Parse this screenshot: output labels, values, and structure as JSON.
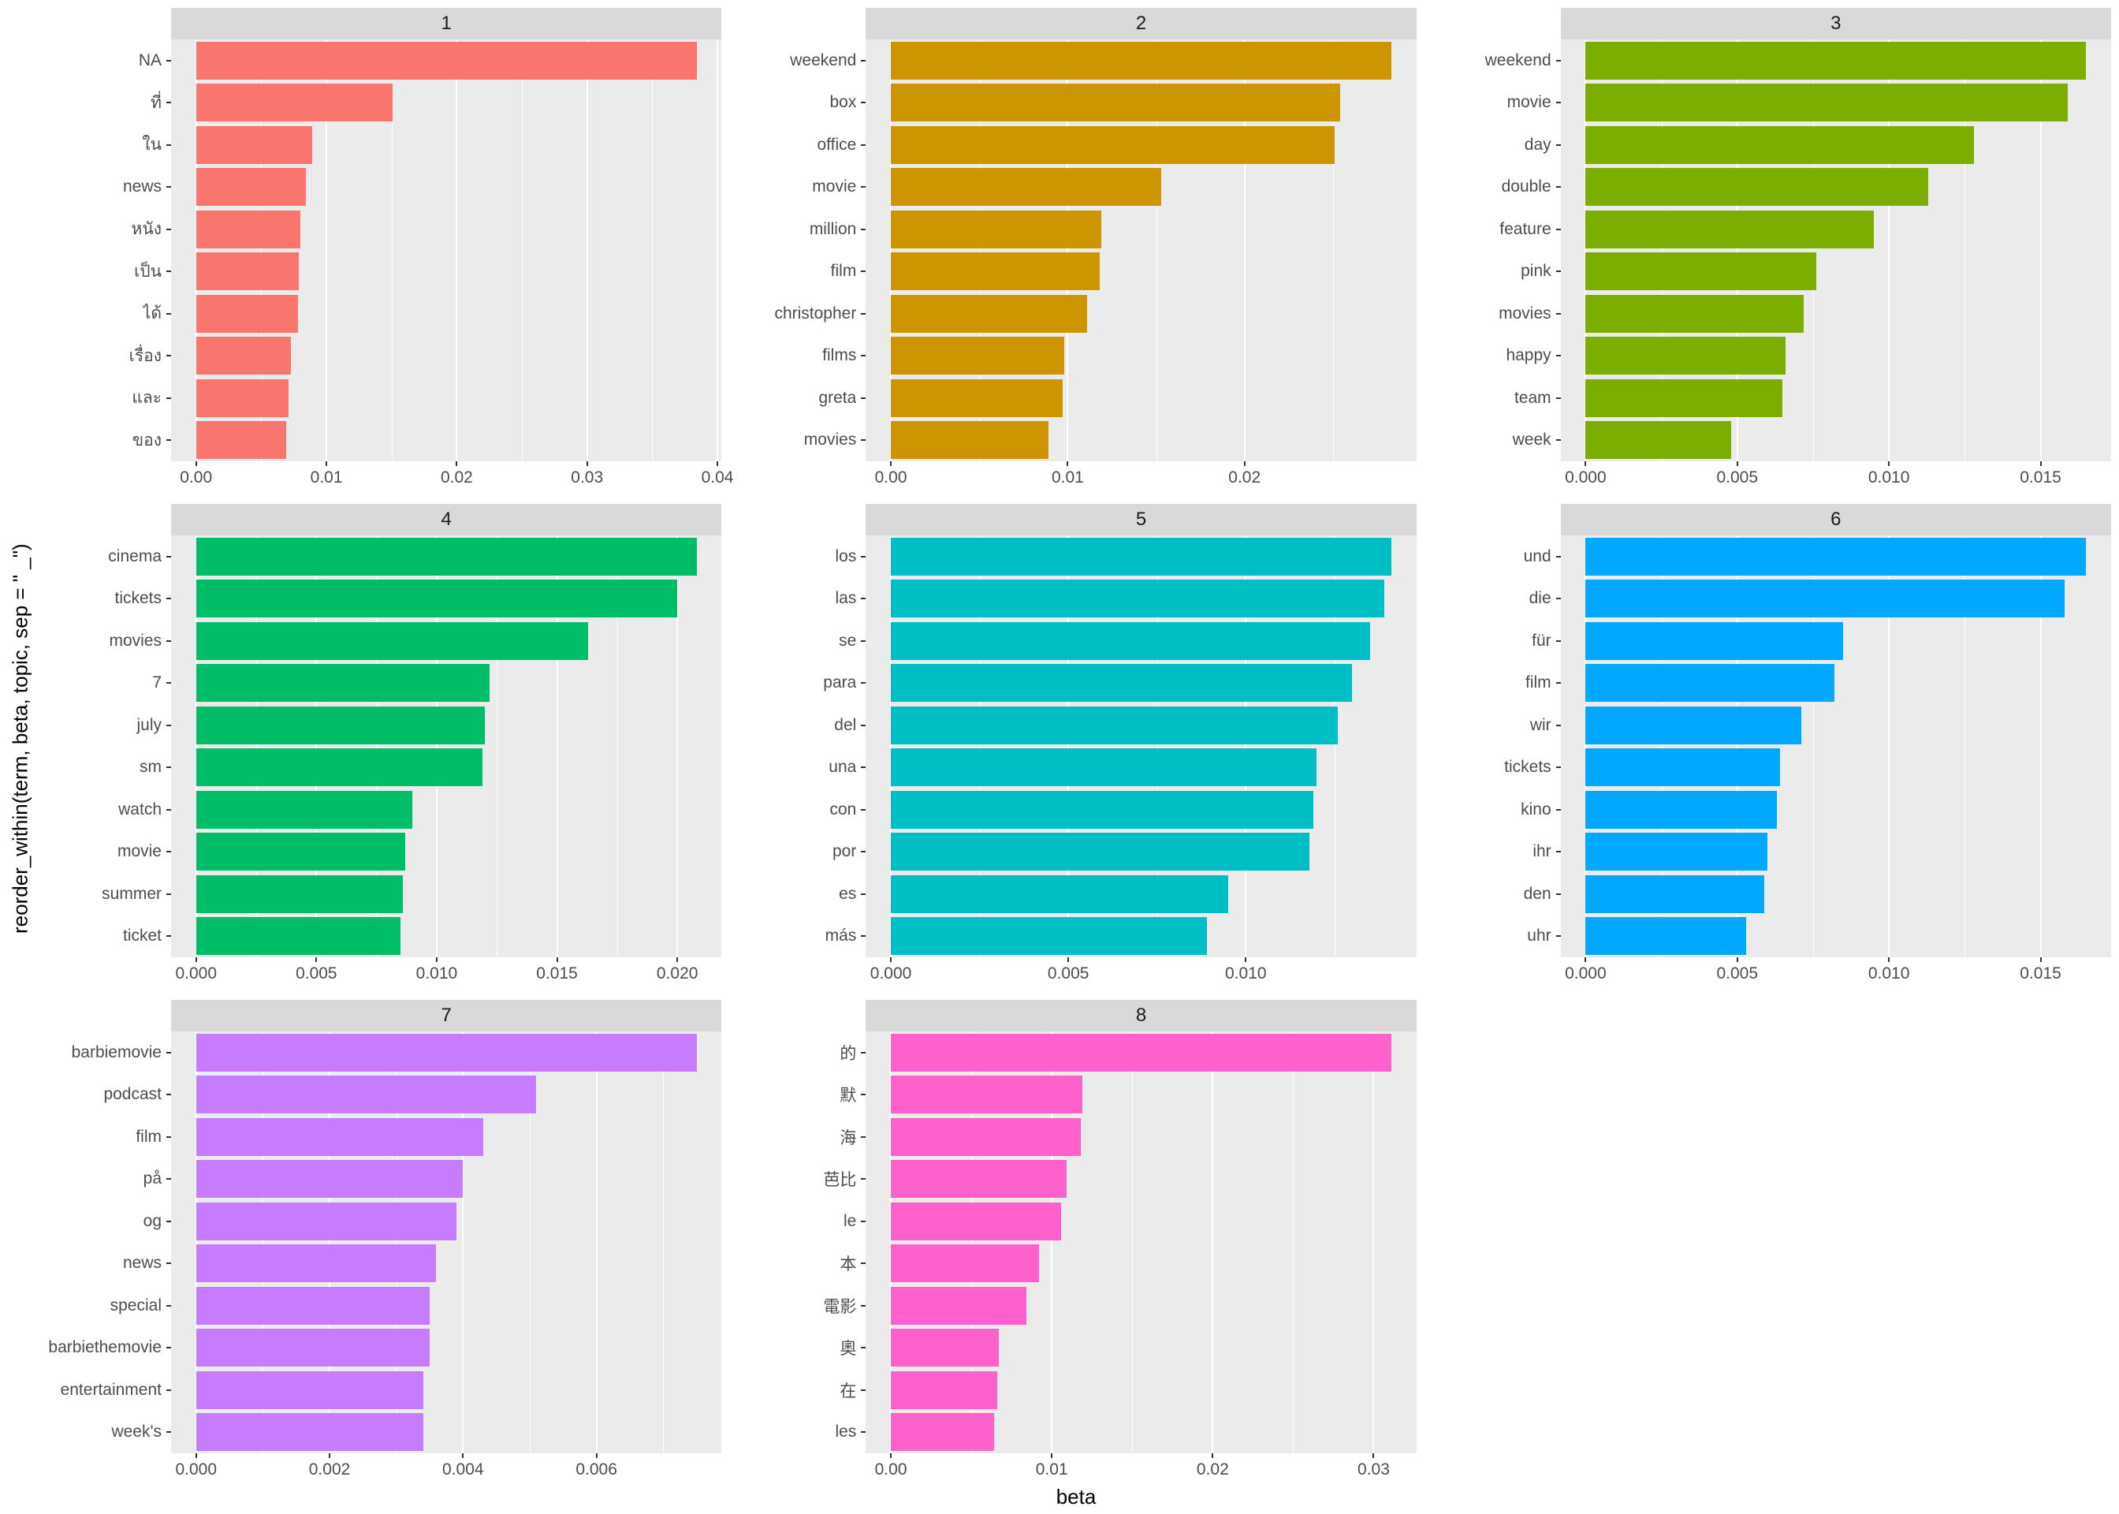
{
  "figure": {
    "xlab": "beta",
    "ylab": "reorder_within(term, beta, topic, sep = \" _\")"
  },
  "theme": {
    "strip_bg": "#d9d9d9",
    "panel_bg": "#ebebeb",
    "gridline": "#ffffff",
    "axis_text": "#4d4d4d"
  },
  "chart_data": {
    "type": "bar",
    "orientation": "horizontal",
    "facet_by": "topic",
    "xlabel": "beta",
    "ylabel": "reorder_within(term, beta, topic, sep = \" _\")",
    "panels": [
      {
        "topic": "1",
        "color": "#F8766D",
        "terms": [
          "NA",
          "ที่",
          "ใน",
          "news",
          "หนัง",
          "เป็น",
          "ได้",
          "เรื่อง",
          "และ",
          "ของ"
        ],
        "values": [
          0.0384,
          0.0151,
          0.0089,
          0.0084,
          0.008,
          0.0079,
          0.0078,
          0.0073,
          0.0071,
          0.0069
        ],
        "ticks": [
          0,
          0.01,
          0.02,
          0.03,
          0.04
        ],
        "tick_labels": [
          "0.00",
          "0.01",
          "0.02",
          "0.03",
          "0.04"
        ]
      },
      {
        "topic": "2",
        "color": "#CD9600",
        "terms": [
          "weekend",
          "box",
          "office",
          "movie",
          "million",
          "film",
          "christopher",
          "films",
          "greta",
          "movies"
        ],
        "values": [
          0.0283,
          0.0254,
          0.0251,
          0.0153,
          0.0119,
          0.0118,
          0.0111,
          0.0098,
          0.0097,
          0.0089
        ],
        "ticks": [
          0,
          0.01,
          0.02
        ],
        "tick_labels": [
          "0.00",
          "0.01",
          "0.02"
        ]
      },
      {
        "topic": "3",
        "color": "#7CAE00",
        "terms": [
          "weekend",
          "movie",
          "day",
          "double",
          "feature",
          "pink",
          "movies",
          "happy",
          "team",
          "week"
        ],
        "values": [
          0.0165,
          0.0159,
          0.0128,
          0.0113,
          0.0095,
          0.0076,
          0.0072,
          0.0066,
          0.0065,
          0.0048
        ],
        "ticks": [
          0,
          0.005,
          0.01,
          0.015
        ],
        "tick_labels": [
          "0.000",
          "0.005",
          "0.010",
          "0.015"
        ]
      },
      {
        "topic": "4",
        "color": "#00BE67",
        "terms": [
          "cinema",
          "tickets",
          "movies",
          "7",
          "july",
          "sm",
          "watch",
          "movie",
          "summer",
          "ticket"
        ],
        "values": [
          0.0208,
          0.02,
          0.0163,
          0.0122,
          0.012,
          0.0119,
          0.009,
          0.0087,
          0.0086,
          0.0085
        ],
        "ticks": [
          0,
          0.005,
          0.01,
          0.015,
          0.02
        ],
        "tick_labels": [
          "0.000",
          "0.005",
          "0.010",
          "0.015",
          "0.020"
        ]
      },
      {
        "topic": "5",
        "color": "#00BFC4",
        "terms": [
          "los",
          "las",
          "se",
          "para",
          "del",
          "una",
          "con",
          "por",
          "es",
          "más"
        ],
        "values": [
          0.0141,
          0.0139,
          0.0135,
          0.013,
          0.0126,
          0.012,
          0.0119,
          0.0118,
          0.0095,
          0.0089
        ],
        "ticks": [
          0,
          0.005,
          0.01
        ],
        "tick_labels": [
          "0.000",
          "0.005",
          "0.010"
        ]
      },
      {
        "topic": "6",
        "color": "#00A9FF",
        "terms": [
          "und",
          "die",
          "für",
          "film",
          "wir",
          "tickets",
          "kino",
          "ihr",
          "den",
          "uhr"
        ],
        "values": [
          0.0165,
          0.0158,
          0.0085,
          0.0082,
          0.0071,
          0.0064,
          0.0063,
          0.006,
          0.0059,
          0.0053
        ],
        "ticks": [
          0,
          0.005,
          0.01,
          0.015
        ],
        "tick_labels": [
          "0.000",
          "0.005",
          "0.010",
          "0.015"
        ]
      },
      {
        "topic": "7",
        "color": "#C77CFF",
        "terms": [
          "barbiemovie",
          "podcast",
          "film",
          "på",
          "og",
          "news",
          "special",
          "barbiethemovie",
          "entertainment",
          "week's"
        ],
        "values": [
          0.0075,
          0.0051,
          0.0043,
          0.004,
          0.0039,
          0.0036,
          0.0035,
          0.0035,
          0.0034,
          0.0034
        ],
        "ticks": [
          0,
          0.002,
          0.004,
          0.006
        ],
        "tick_labels": [
          "0.000",
          "0.002",
          "0.004",
          "0.006"
        ]
      },
      {
        "topic": "8",
        "color": "#FF61CC",
        "terms": [
          "的",
          "默",
          "海",
          "芭比",
          "le",
          "本",
          "電影",
          "奧",
          "在",
          "les"
        ],
        "values": [
          0.0311,
          0.0119,
          0.0118,
          0.0109,
          0.0106,
          0.0092,
          0.0084,
          0.0067,
          0.0066,
          0.0064
        ],
        "ticks": [
          0,
          0.01,
          0.02,
          0.03
        ],
        "tick_labels": [
          "0.00",
          "0.01",
          "0.02",
          "0.03"
        ]
      }
    ]
  }
}
